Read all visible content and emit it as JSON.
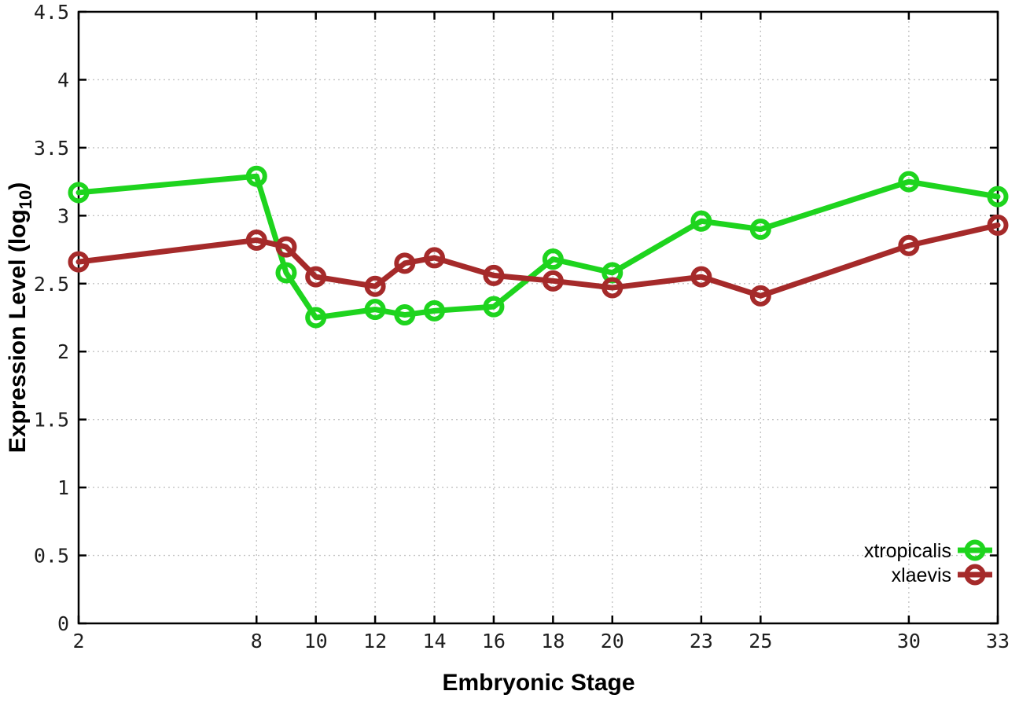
{
  "chart_data": {
    "type": "line",
    "title": "",
    "xlabel": "Embryonic Stage",
    "ylabel_parts": {
      "main": "Expression Level (log",
      "sub": "10",
      "end": ")"
    },
    "x": [
      2,
      8,
      9,
      10,
      12,
      13,
      14,
      16,
      18,
      20,
      23,
      25,
      30,
      33
    ],
    "series": [
      {
        "name": "xtropicalis",
        "color": "#1ed41e",
        "values": [
          3.17,
          3.29,
          2.58,
          2.25,
          2.31,
          2.27,
          2.3,
          2.33,
          2.68,
          2.58,
          2.96,
          2.9,
          3.25,
          3.14
        ]
      },
      {
        "name": "xlaevis",
        "color": "#a52a2a",
        "values": [
          2.66,
          2.82,
          2.77,
          2.55,
          2.48,
          2.65,
          2.69,
          2.56,
          2.52,
          2.47,
          2.55,
          2.41,
          2.78,
          2.93
        ]
      }
    ],
    "xlim": [
      2,
      33
    ],
    "ylim": [
      0,
      4.5
    ],
    "xticks": {
      "values": [
        2,
        8,
        10,
        12,
        14,
        16,
        18,
        20,
        23,
        25,
        30,
        33
      ],
      "labels": [
        "2",
        "8",
        "10",
        "12",
        "14",
        "16",
        "18",
        "20",
        "23",
        "25",
        "30",
        "33"
      ]
    },
    "yticks": {
      "values": [
        0,
        0.5,
        1,
        1.5,
        2,
        2.5,
        3,
        3.5,
        4,
        4.5
      ],
      "labels": [
        "0",
        "0.5",
        "1",
        "1.5",
        "2",
        "2.5",
        "3",
        "3.5",
        "4",
        "4.5"
      ]
    },
    "grid": true,
    "legend_position": "bottom-right",
    "marker": "open-circle",
    "colors": {
      "grid": "#c4c4c4",
      "border": "#000000",
      "background": "#ffffff"
    }
  }
}
